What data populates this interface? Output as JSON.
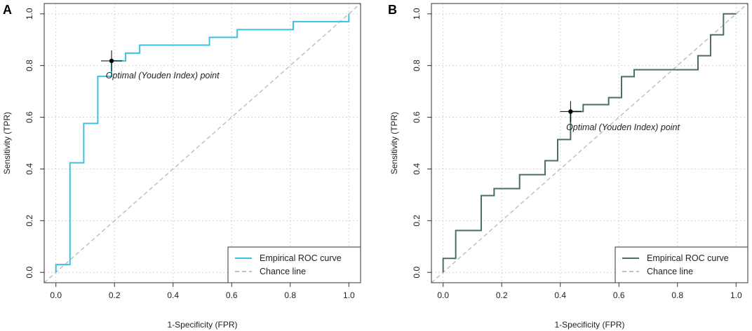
{
  "chart_data": [
    {
      "type": "line",
      "panel_label": "A",
      "xlabel": "1-Specificity (FPR)",
      "ylabel": "Sensitivity (TPR)",
      "xlim": [
        -0.04,
        1.04
      ],
      "ylim": [
        -0.04,
        1.04
      ],
      "xticks": [
        0.0,
        0.2,
        0.4,
        0.6,
        0.8,
        1.0
      ],
      "yticks": [
        0.0,
        0.2,
        0.4,
        0.6,
        0.8,
        1.0
      ],
      "xtick_labels": [
        "0.0",
        "0.2",
        "0.4",
        "0.6",
        "0.8",
        "1.0"
      ],
      "ytick_labels": [
        "0.0",
        "0.2",
        "0.4",
        "0.6",
        "0.8",
        "1.0"
      ],
      "grid": true,
      "legend_position": "bottom-right",
      "series": [
        {
          "name": "Empirical ROC curve",
          "color": "#3fc1de",
          "style": "step",
          "x": [
            0.0,
            0.0,
            0.048,
            0.048,
            0.095,
            0.095,
            0.143,
            0.143,
            0.19,
            0.19,
            0.238,
            0.238,
            0.286,
            0.286,
            0.524,
            0.524,
            0.619,
            0.619,
            0.81,
            0.81,
            1.0,
            1.0
          ],
          "y": [
            0.0,
            0.03,
            0.03,
            0.424,
            0.424,
            0.576,
            0.576,
            0.758,
            0.758,
            0.818,
            0.818,
            0.848,
            0.848,
            0.879,
            0.879,
            0.909,
            0.909,
            0.939,
            0.939,
            0.97,
            0.97,
            1.0
          ]
        },
        {
          "name": "Chance line",
          "color": "#c0c0c0",
          "style": "dashed",
          "x": [
            -0.04,
            1.04
          ],
          "y": [
            -0.04,
            1.04
          ]
        }
      ],
      "optimal_point": {
        "x": 0.19,
        "y": 0.818
      },
      "annotation": "Optimal (Youden Index) point",
      "annotation_anchor": {
        "x": 0.17,
        "y": 0.75
      }
    },
    {
      "type": "line",
      "panel_label": "B",
      "xlabel": "1-Specificity (FPR)",
      "ylabel": "Sensitivity (TPR)",
      "xlim": [
        -0.04,
        1.04
      ],
      "ylim": [
        -0.04,
        1.04
      ],
      "xticks": [
        0.0,
        0.2,
        0.4,
        0.6,
        0.8,
        1.0
      ],
      "yticks": [
        0.0,
        0.2,
        0.4,
        0.6,
        0.8,
        1.0
      ],
      "xtick_labels": [
        "0.0",
        "0.2",
        "0.4",
        "0.6",
        "0.8",
        "1.0"
      ],
      "ytick_labels": [
        "0.0",
        "0.2",
        "0.4",
        "0.6",
        "0.8",
        "1.0"
      ],
      "grid": true,
      "legend_position": "bottom-right",
      "series": [
        {
          "name": "Empirical ROC curve",
          "color": "#4a6e66",
          "style": "step",
          "x": [
            0.0,
            0.0,
            0.043,
            0.043,
            0.13,
            0.13,
            0.174,
            0.174,
            0.261,
            0.261,
            0.348,
            0.348,
            0.391,
            0.391,
            0.435,
            0.435,
            0.478,
            0.478,
            0.565,
            0.565,
            0.609,
            0.609,
            0.652,
            0.652,
            0.87,
            0.87,
            0.913,
            0.913,
            0.957,
            0.957,
            1.0
          ],
          "y": [
            0.0,
            0.054,
            0.054,
            0.162,
            0.162,
            0.297,
            0.297,
            0.324,
            0.324,
            0.378,
            0.378,
            0.432,
            0.432,
            0.514,
            0.514,
            0.622,
            0.622,
            0.649,
            0.649,
            0.676,
            0.676,
            0.757,
            0.757,
            0.784,
            0.784,
            0.838,
            0.838,
            0.919,
            0.919,
            1.0,
            1.0
          ]
        },
        {
          "name": "Chance line",
          "color": "#c0c0c0",
          "style": "dashed",
          "x": [
            -0.04,
            1.04
          ],
          "y": [
            -0.04,
            1.04
          ]
        }
      ],
      "optimal_point": {
        "x": 0.435,
        "y": 0.622
      },
      "annotation": "Optimal (Youden Index) point",
      "annotation_anchor": {
        "x": 0.42,
        "y": 0.55
      }
    }
  ]
}
